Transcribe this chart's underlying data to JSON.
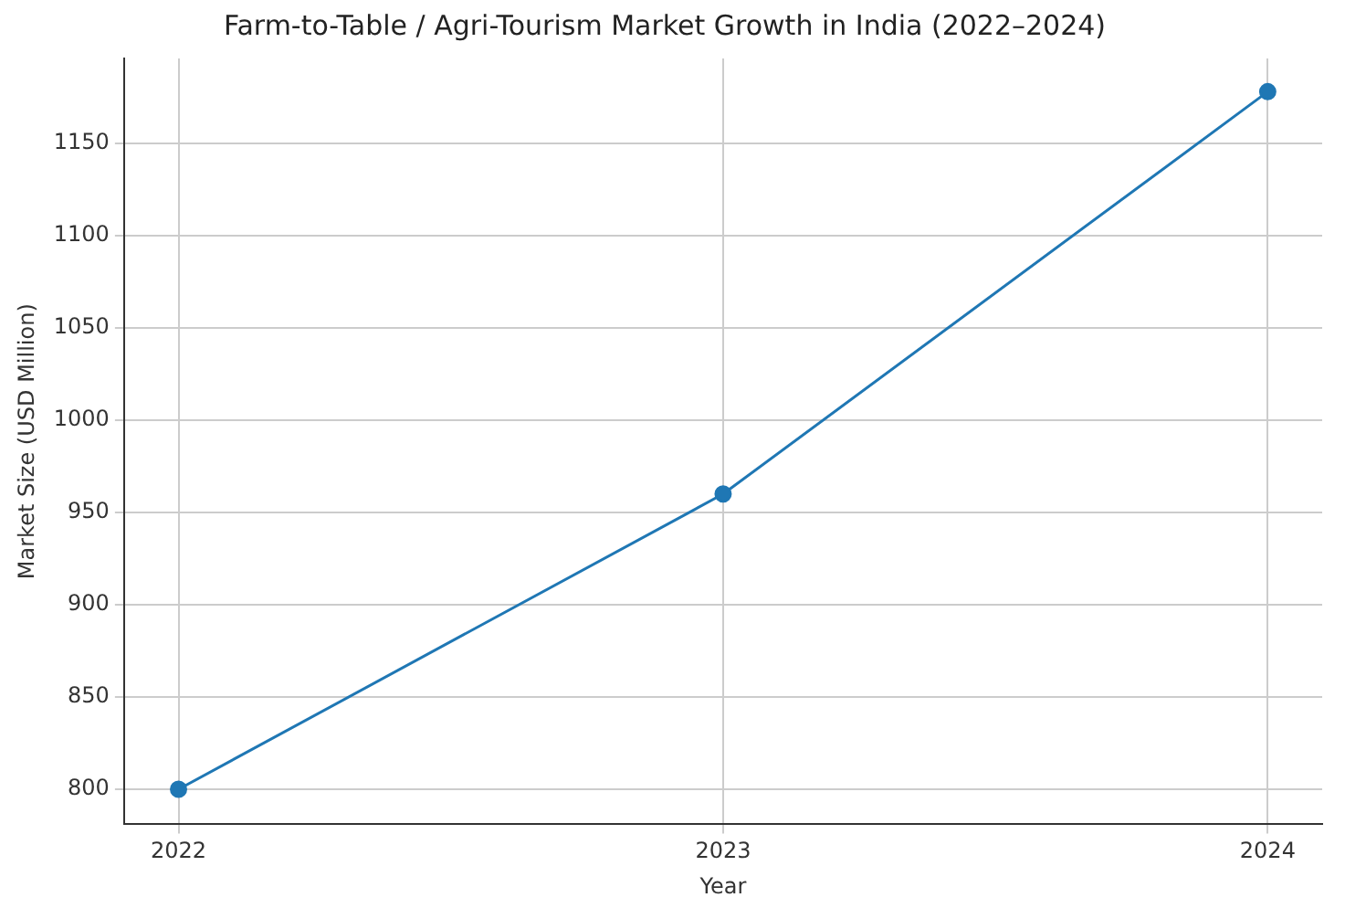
{
  "chart_data": {
    "type": "line",
    "title": "Farm-to-Table / Agri-Tourism Market Growth in India (2022–2024)",
    "xlabel": "Year",
    "ylabel": "Market Size (USD Million)",
    "x": [
      2022,
      2023,
      2024
    ],
    "series": [
      {
        "color": "#1f77b4",
        "values": [
          800,
          960,
          1178
        ]
      }
    ],
    "xlim": [
      2021.9,
      2024.1
    ],
    "xticks": [
      2022,
      2023,
      2024
    ],
    "ylim": [
      781,
      1196
    ],
    "yticks": [
      800,
      850,
      900,
      950,
      1000,
      1050,
      1100,
      1150
    ],
    "grid": true,
    "marker": "circle",
    "line_style": "solid",
    "legend": false
  }
}
